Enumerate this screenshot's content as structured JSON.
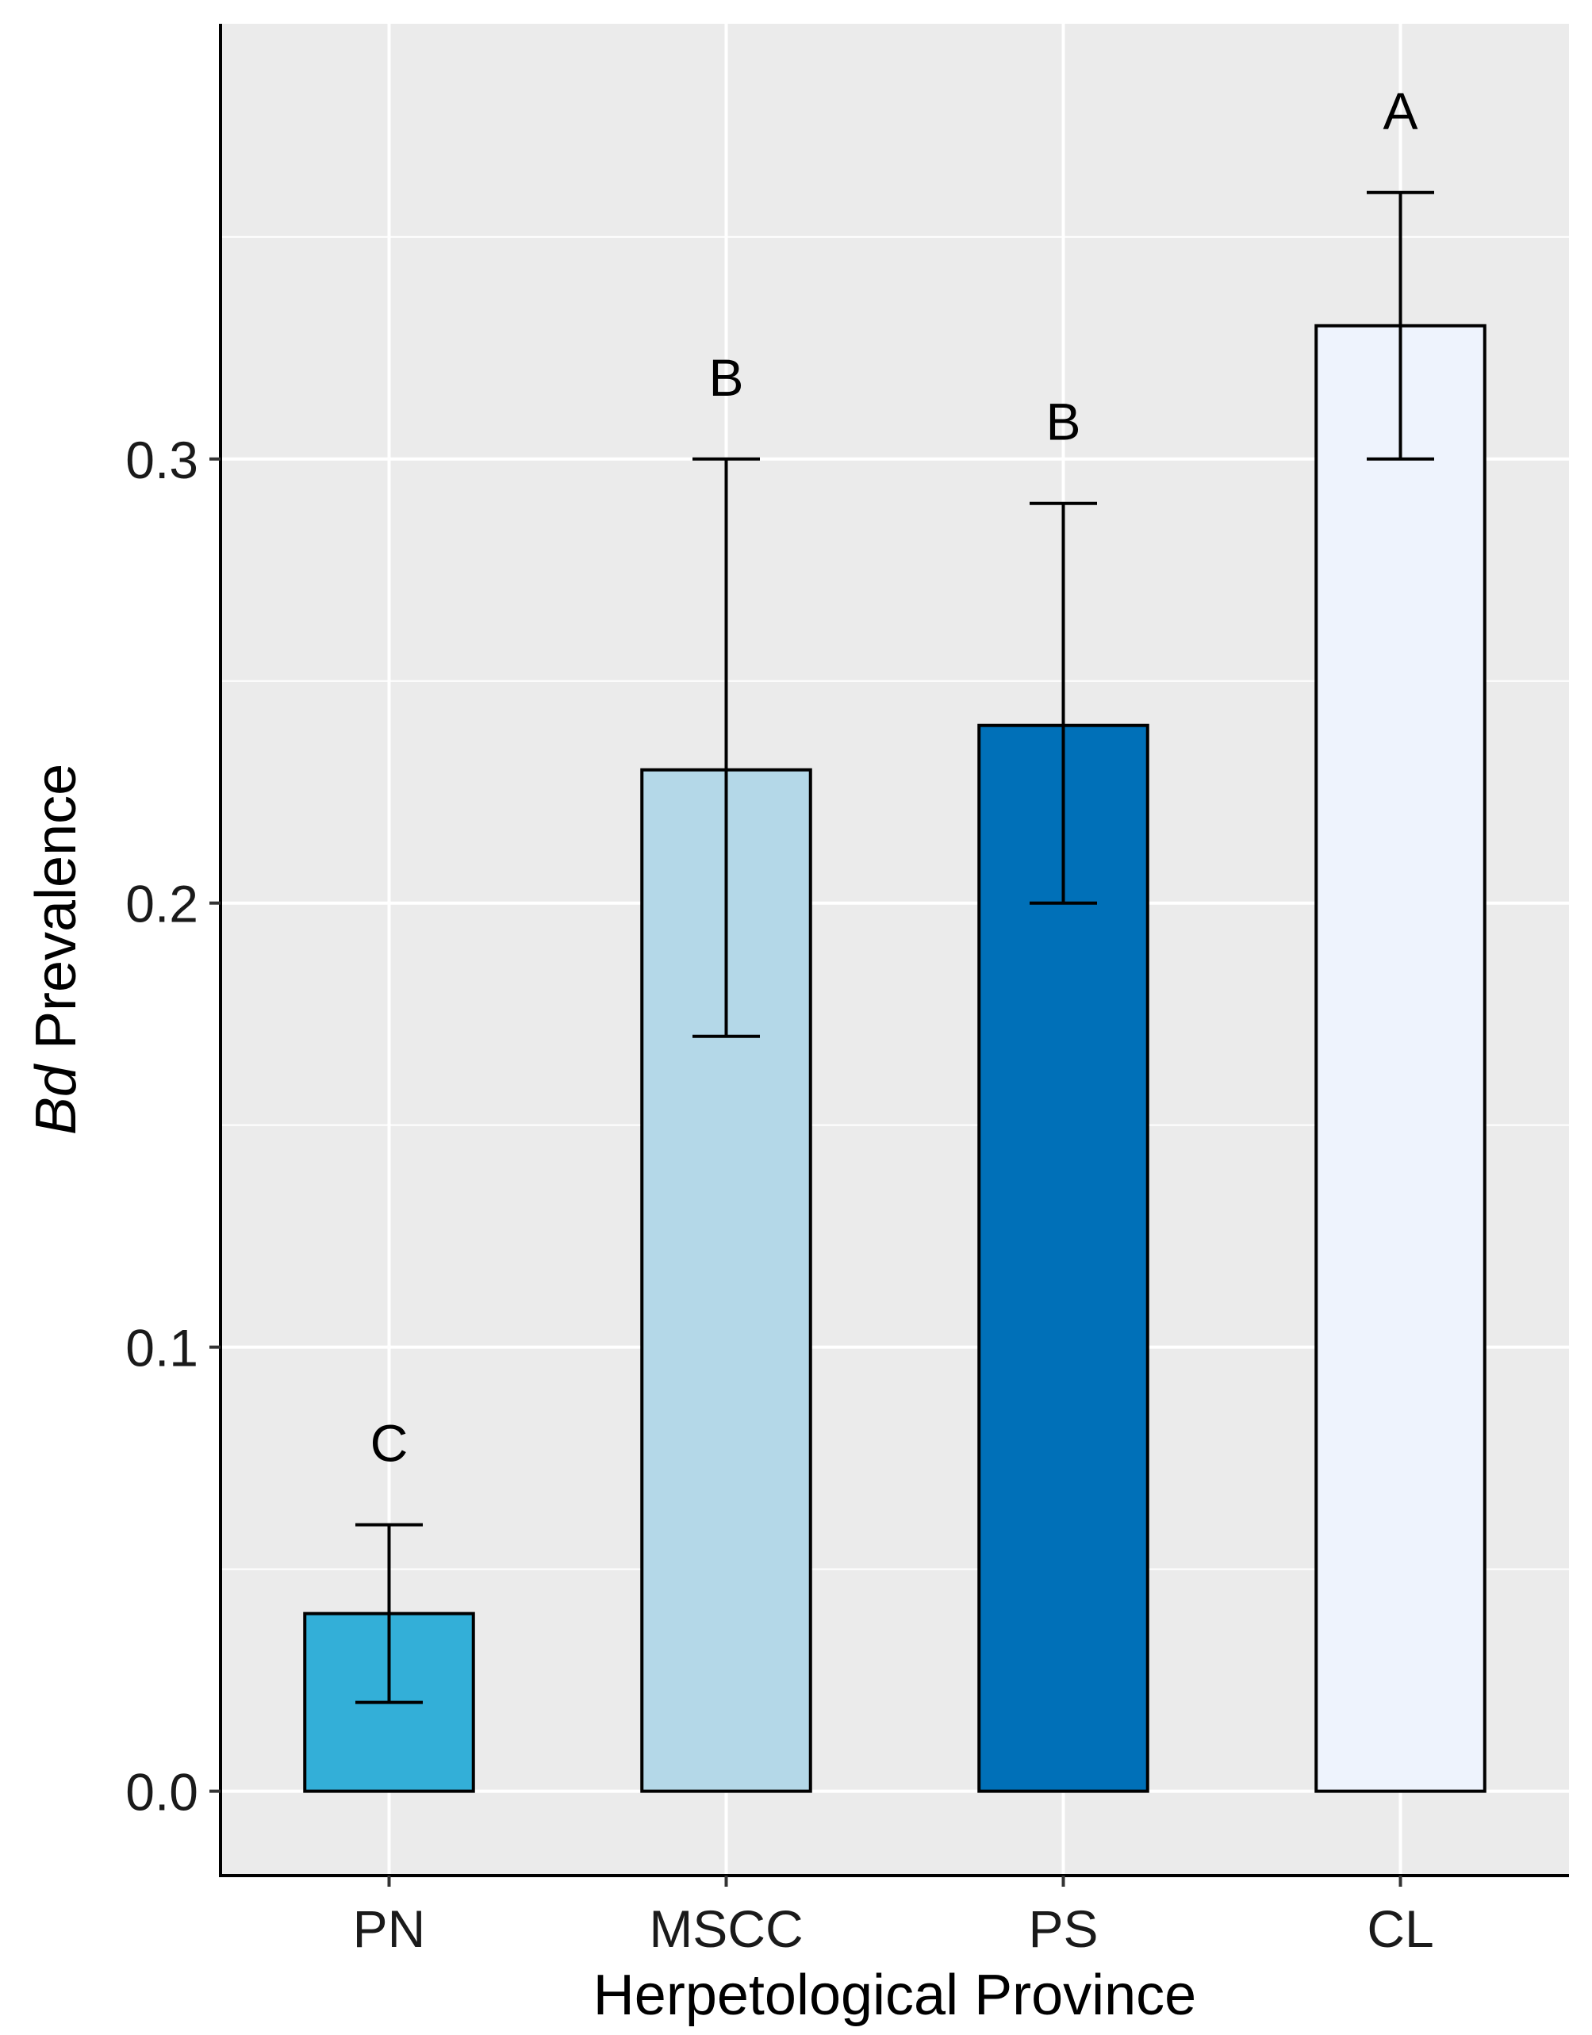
{
  "chart_data": {
    "type": "bar",
    "title": "",
    "xlabel": "Herpetological Province",
    "ylabel_italic": "Bd",
    "ylabel_rest": " Prevalence",
    "categories": [
      "PN",
      "MSCC",
      "PS",
      "CL"
    ],
    "values": [
      0.04,
      0.23,
      0.24,
      0.33
    ],
    "error_low": [
      0.02,
      0.17,
      0.2,
      0.3
    ],
    "error_high": [
      0.06,
      0.3,
      0.29,
      0.36
    ],
    "significance_letters": [
      "C",
      "B",
      "B",
      "A"
    ],
    "colors": [
      "#33afd8",
      "#b4d8e8",
      "#0070b8",
      "#eef3fd"
    ],
    "ylim": [
      -0.019,
      0.398
    ],
    "yticks": [
      0.0,
      0.1,
      0.2,
      0.3
    ],
    "ytick_labels": [
      "0.0",
      "0.1",
      "0.2",
      "0.3"
    ],
    "yminor": [
      0.05,
      0.15,
      0.25,
      0.35
    ],
    "grid": true,
    "panel_color": "#ebebeb",
    "grid_color": "#ffffff"
  }
}
